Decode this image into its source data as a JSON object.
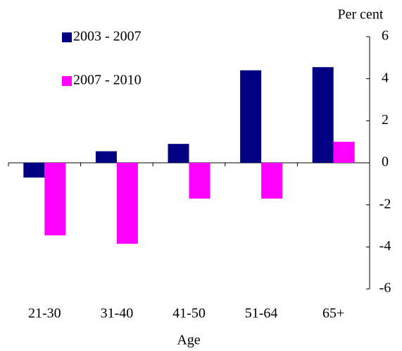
{
  "chart_data": {
    "type": "bar",
    "y_label": "Per cent",
    "x_label": "Age",
    "categories": [
      "21-30",
      "31-40",
      "41-50",
      "51-64",
      "65+"
    ],
    "series": [
      {
        "name": "2003 - 2007",
        "color": "#000080",
        "values": [
          -0.7,
          0.55,
          0.9,
          4.4,
          4.55
        ]
      },
      {
        "name": "2007 - 2010",
        "color": "#ff00ff",
        "values": [
          -3.45,
          -3.85,
          -1.7,
          -1.7,
          1.0
        ]
      }
    ],
    "ylim": [
      -6,
      6
    ],
    "yticks": [
      -6,
      -4,
      -2,
      0,
      2,
      4,
      6
    ],
    "grid": false,
    "legend": "upper left"
  }
}
